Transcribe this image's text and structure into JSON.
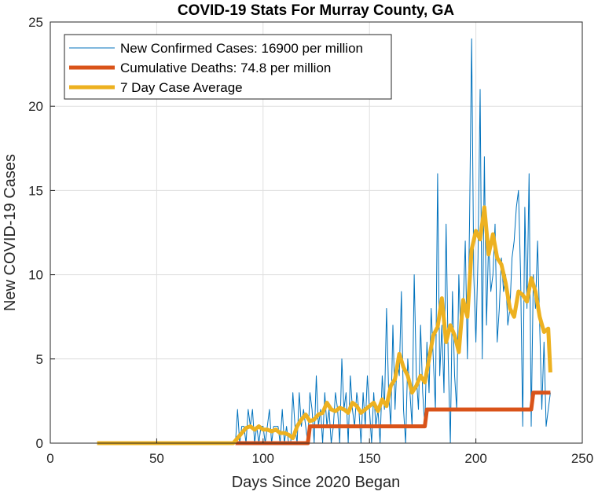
{
  "chart_data": {
    "type": "line",
    "title": "COVID-19 Stats For Murray County, GA",
    "xlabel": "Days Since 2020 Began",
    "ylabel": "New COVID-19 Cases",
    "xlim": [
      0,
      250
    ],
    "ylim": [
      0,
      25
    ],
    "xticks": [
      0,
      50,
      100,
      150,
      200,
      250
    ],
    "yticks": [
      0,
      5,
      10,
      15,
      20,
      25
    ],
    "grid": true,
    "legend_position": "top-left",
    "series": [
      {
        "name": "New Confirmed Cases: 16900 per million",
        "color": "#0072BD",
        "line_width": "thin",
        "x": [
          87,
          88,
          89,
          90,
          91,
          92,
          93,
          94,
          95,
          96,
          97,
          98,
          99,
          100,
          101,
          102,
          103,
          104,
          105,
          106,
          107,
          108,
          109,
          110,
          111,
          112,
          113,
          114,
          115,
          116,
          117,
          118,
          119,
          120,
          121,
          122,
          123,
          124,
          125,
          126,
          127,
          128,
          129,
          130,
          131,
          132,
          133,
          134,
          135,
          136,
          137,
          138,
          139,
          140,
          141,
          142,
          143,
          144,
          145,
          146,
          147,
          148,
          149,
          150,
          151,
          152,
          153,
          154,
          155,
          156,
          157,
          158,
          159,
          160,
          161,
          162,
          163,
          164,
          165,
          166,
          167,
          168,
          169,
          170,
          171,
          172,
          173,
          174,
          175,
          176,
          177,
          178,
          179,
          180,
          181,
          182,
          183,
          184,
          185,
          186,
          187,
          188,
          189,
          190,
          191,
          192,
          193,
          194,
          195,
          196,
          197,
          198,
          199,
          200,
          201,
          202,
          203,
          204,
          205,
          206,
          207,
          208,
          209,
          210,
          211,
          212,
          213,
          214,
          215,
          216,
          217,
          218,
          219,
          220,
          221,
          222,
          223,
          224,
          225,
          226,
          227,
          228,
          229,
          230,
          231,
          232,
          233,
          234,
          235
        ],
        "y": [
          0,
          2,
          0,
          1,
          1,
          0,
          2,
          1,
          2,
          0,
          1,
          0,
          1,
          1,
          0,
          1,
          2,
          0,
          1,
          1,
          1,
          0,
          2,
          0,
          1,
          0,
          0,
          3,
          1,
          0,
          3,
          1,
          2,
          1,
          0,
          3,
          2,
          0,
          4,
          1,
          2,
          0,
          3,
          1,
          2,
          0,
          1,
          3,
          2,
          0,
          5,
          2,
          3,
          0,
          4,
          2,
          1,
          3,
          2,
          0,
          3,
          1,
          4,
          2,
          0,
          3,
          1,
          2,
          0,
          4,
          2,
          8,
          3,
          1,
          7,
          2,
          5,
          4,
          9,
          2,
          0,
          5,
          3,
          1,
          10,
          4,
          2,
          7,
          3,
          1,
          6,
          3,
          8,
          5,
          2,
          16,
          4,
          7,
          3,
          13,
          5,
          0,
          9,
          4,
          2,
          10,
          6,
          8,
          12,
          5,
          13,
          24,
          10,
          6,
          11,
          21,
          5,
          17,
          7,
          12,
          9,
          10,
          13,
          6,
          8,
          11,
          9,
          10,
          7,
          8,
          11,
          12,
          14,
          15,
          10,
          1,
          14,
          8,
          16,
          1,
          10,
          8,
          12,
          7,
          2,
          6,
          1,
          2,
          3
        ]
      },
      {
        "name": "Cumulative Deaths: 74.8 per million",
        "color": "#D95319",
        "line_width": "thick",
        "x": [
          87,
          121,
          122,
          176,
          177,
          226,
          227,
          235
        ],
        "y": [
          0,
          0,
          1,
          1,
          2,
          2,
          3,
          3
        ]
      },
      {
        "name": "7 Day Case Average",
        "color": "#EDB120",
        "line_width": "thick",
        "x": [
          22,
          86,
          88,
          90,
          92,
          94,
          96,
          98,
          100,
          102,
          104,
          106,
          108,
          110,
          112,
          114,
          116,
          118,
          120,
          122,
          124,
          126,
          128,
          130,
          132,
          134,
          136,
          138,
          140,
          142,
          144,
          146,
          148,
          150,
          152,
          154,
          156,
          158,
          160,
          162,
          164,
          166,
          168,
          170,
          172,
          174,
          176,
          178,
          180,
          182,
          184,
          186,
          188,
          190,
          192,
          194,
          196,
          198,
          200,
          202,
          204,
          206,
          208,
          210,
          212,
          214,
          216,
          218,
          220,
          222,
          224,
          226,
          228,
          230,
          232,
          234,
          235
        ],
        "y": [
          0,
          0,
          0.3,
          0.6,
          0.9,
          1.0,
          0.8,
          1.0,
          0.8,
          0.8,
          0.7,
          0.8,
          0.6,
          0.6,
          0.5,
          0.3,
          1.0,
          1.4,
          1.7,
          1.3,
          1.4,
          1.7,
          1.8,
          2.4,
          2.0,
          1.9,
          2.1,
          2.0,
          1.8,
          2.4,
          2.2,
          1.8,
          2.0,
          2.2,
          2.4,
          1.9,
          2.6,
          2.2,
          3.4,
          3.8,
          5.3,
          4.5,
          4.0,
          3.0,
          3.4,
          4.0,
          3.6,
          5.0,
          6.4,
          6.9,
          8.6,
          6.0,
          7.0,
          6.4,
          5.4,
          8.5,
          7.5,
          11.5,
          12.6,
          12.1,
          14.0,
          11.2,
          12.4,
          11.0,
          10.6,
          9.5,
          8.0,
          7.5,
          9.0,
          8.8,
          8.4,
          9.8,
          9.0,
          7.5,
          6.6,
          6.8,
          4.2
        ]
      }
    ]
  }
}
